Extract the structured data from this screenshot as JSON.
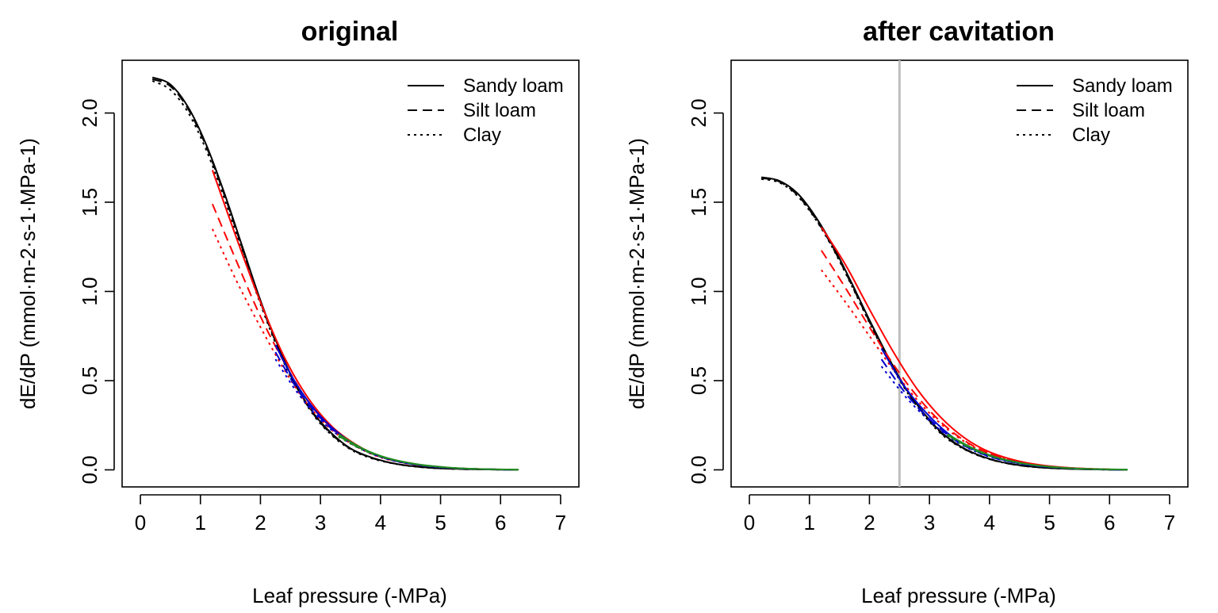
{
  "chart_data": [
    {
      "type": "line",
      "title": "original",
      "xlabel": "Leaf pressure (-MPa)",
      "ylabel": "dE/dP  (mmol·m-2·s-1·MPa-1)",
      "xlim": [
        0,
        7
      ],
      "ylim": [
        0,
        2.2
      ],
      "x_ticks": [
        "0",
        "1",
        "2",
        "3",
        "4",
        "5",
        "6",
        "7"
      ],
      "y_ticks": [
        "0.0",
        "0.5",
        "1.0",
        "1.5",
        "2.0"
      ],
      "grid": false,
      "legend_position": "top-right",
      "legend": [
        {
          "label": "Sandy loam",
          "dash": "solid"
        },
        {
          "label": "Silt loam",
          "dash": "dashed"
        },
        {
          "label": "Clay",
          "dash": "dotted"
        }
      ],
      "reference_line_x": null,
      "series": [
        {
          "soil": "Sandy loam",
          "color": "#000000",
          "dash": "solid",
          "x": [
            0.2,
            0.5,
            0.8,
            1.1,
            1.4,
            1.7,
            2.0,
            2.3,
            2.6,
            2.9,
            3.2,
            3.5,
            3.8,
            4.1,
            4.4,
            4.7,
            5.0,
            5.4,
            5.8,
            6.3
          ],
          "y": [
            2.2,
            2.16,
            2.03,
            1.82,
            1.55,
            1.25,
            0.95,
            0.69,
            0.47,
            0.31,
            0.2,
            0.12,
            0.075,
            0.045,
            0.026,
            0.015,
            0.008,
            0.004,
            0.002,
            0.0
          ]
        },
        {
          "soil": "Silt loam",
          "color": "#000000",
          "dash": "dashed",
          "x": [
            0.2,
            0.5,
            0.8,
            1.1,
            1.4,
            1.7,
            2.0,
            2.3,
            2.6,
            2.9,
            3.2,
            3.5,
            3.8,
            4.1,
            4.4,
            4.7,
            5.0,
            5.4,
            5.8,
            6.3
          ],
          "y": [
            2.19,
            2.15,
            2.02,
            1.81,
            1.54,
            1.24,
            0.94,
            0.68,
            0.465,
            0.305,
            0.195,
            0.118,
            0.073,
            0.044,
            0.026,
            0.015,
            0.008,
            0.004,
            0.002,
            0.0
          ]
        },
        {
          "soil": "Clay",
          "color": "#000000",
          "dash": "dotted",
          "x": [
            0.2,
            0.5,
            0.8,
            1.1,
            1.4,
            1.7,
            2.0,
            2.3,
            2.6,
            2.9,
            3.2,
            3.5,
            3.8,
            4.1,
            4.4,
            4.7,
            5.0,
            5.4,
            5.8,
            6.3
          ],
          "y": [
            2.18,
            2.13,
            2.0,
            1.79,
            1.52,
            1.22,
            0.93,
            0.67,
            0.46,
            0.3,
            0.19,
            0.115,
            0.07,
            0.043,
            0.025,
            0.014,
            0.008,
            0.004,
            0.002,
            0.0
          ]
        },
        {
          "soil": "Sandy loam",
          "color": "#ff0000",
          "dash": "solid",
          "x": [
            1.2,
            1.6,
            2.0,
            2.4,
            2.8,
            3.2,
            3.6,
            4.0,
            4.5,
            5.0,
            5.5,
            6.0
          ],
          "y": [
            1.68,
            1.3,
            0.94,
            0.63,
            0.4,
            0.24,
            0.14,
            0.075,
            0.035,
            0.015,
            0.006,
            0.002
          ]
        },
        {
          "soil": "Silt loam",
          "color": "#ff0000",
          "dash": "dashed",
          "x": [
            1.2,
            1.6,
            2.0,
            2.4,
            2.8,
            3.2,
            3.6,
            4.0,
            4.5,
            5.0,
            5.5,
            6.0
          ],
          "y": [
            1.49,
            1.17,
            0.86,
            0.6,
            0.38,
            0.23,
            0.135,
            0.072,
            0.033,
            0.014,
            0.006,
            0.002
          ]
        },
        {
          "soil": "Clay",
          "color": "#ff0000",
          "dash": "dotted",
          "x": [
            1.2,
            1.6,
            2.0,
            2.4,
            2.8,
            3.2,
            3.6,
            4.0,
            4.5,
            5.0,
            5.5,
            6.0
          ],
          "y": [
            1.35,
            1.06,
            0.8,
            0.56,
            0.36,
            0.22,
            0.13,
            0.07,
            0.032,
            0.014,
            0.006,
            0.002
          ]
        },
        {
          "soil": "Sandy loam",
          "color": "#0000cd",
          "dash": "solid",
          "x": [
            2.25,
            2.6,
            3.0,
            3.4,
            3.8,
            4.2,
            4.7,
            5.2,
            5.7,
            6.2
          ],
          "y": [
            0.7,
            0.48,
            0.3,
            0.18,
            0.1,
            0.055,
            0.024,
            0.01,
            0.004,
            0.001
          ]
        },
        {
          "soil": "Silt loam",
          "color": "#0000cd",
          "dash": "dashed",
          "x": [
            2.25,
            2.6,
            3.0,
            3.4,
            3.8,
            4.2,
            4.7,
            5.2,
            5.7,
            6.2
          ],
          "y": [
            0.66,
            0.46,
            0.29,
            0.175,
            0.1,
            0.054,
            0.024,
            0.01,
            0.004,
            0.001
          ]
        },
        {
          "soil": "Clay",
          "color": "#0000cd",
          "dash": "dotted",
          "x": [
            2.25,
            2.6,
            3.0,
            3.4,
            3.8,
            4.2,
            4.7,
            5.2,
            5.7,
            6.2
          ],
          "y": [
            0.62,
            0.44,
            0.28,
            0.17,
            0.098,
            0.053,
            0.024,
            0.01,
            0.004,
            0.001
          ]
        },
        {
          "soil": "Sandy loam",
          "color": "#228b22",
          "dash": "solid",
          "x": [
            3.3,
            3.7,
            4.1,
            4.6,
            5.1,
            5.6,
            6.3
          ],
          "y": [
            0.2,
            0.12,
            0.068,
            0.032,
            0.014,
            0.005,
            0.001
          ]
        },
        {
          "soil": "Silt loam",
          "color": "#228b22",
          "dash": "dashed",
          "x": [
            3.3,
            3.7,
            4.1,
            4.6,
            5.1,
            5.6,
            6.3
          ],
          "y": [
            0.19,
            0.115,
            0.066,
            0.031,
            0.013,
            0.005,
            0.001
          ]
        },
        {
          "soil": "Clay",
          "color": "#228b22",
          "dash": "dotted",
          "x": [
            3.3,
            3.7,
            4.1,
            4.6,
            5.1,
            5.6,
            6.3
          ],
          "y": [
            0.185,
            0.112,
            0.064,
            0.03,
            0.013,
            0.005,
            0.001
          ]
        }
      ]
    },
    {
      "type": "line",
      "title": "after cavitation",
      "xlabel": "Leaf pressure (-MPa)",
      "ylabel": "dE/dP  (mmol·m-2·s-1·MPa-1)",
      "xlim": [
        0,
        7
      ],
      "ylim": [
        0,
        2.2
      ],
      "x_ticks": [
        "0",
        "1",
        "2",
        "3",
        "4",
        "5",
        "6",
        "7"
      ],
      "y_ticks": [
        "0.0",
        "0.5",
        "1.0",
        "1.5",
        "2.0"
      ],
      "grid": false,
      "legend_position": "top-right",
      "legend": [
        {
          "label": "Sandy loam",
          "dash": "solid"
        },
        {
          "label": "Silt loam",
          "dash": "dashed"
        },
        {
          "label": "Clay",
          "dash": "dotted"
        }
      ],
      "reference_line_x": 2.5,
      "series": [
        {
          "soil": "Sandy loam",
          "color": "#000000",
          "dash": "solid",
          "x": [
            0.2,
            0.5,
            0.8,
            1.1,
            1.4,
            1.7,
            2.0,
            2.3,
            2.6,
            2.9,
            3.2,
            3.5,
            3.8,
            4.1,
            4.4,
            4.7,
            5.0,
            5.4,
            5.8,
            6.3
          ],
          "y": [
            1.64,
            1.62,
            1.55,
            1.42,
            1.25,
            1.05,
            0.84,
            0.64,
            0.46,
            0.32,
            0.21,
            0.135,
            0.085,
            0.052,
            0.031,
            0.018,
            0.01,
            0.005,
            0.002,
            0.0
          ]
        },
        {
          "soil": "Silt loam",
          "color": "#000000",
          "dash": "dashed",
          "x": [
            0.2,
            0.5,
            0.8,
            1.1,
            1.4,
            1.7,
            2.0,
            2.3,
            2.6,
            2.9,
            3.2,
            3.5,
            3.8,
            4.1,
            4.4,
            4.7,
            5.0,
            5.4,
            5.8,
            6.3
          ],
          "y": [
            1.635,
            1.615,
            1.54,
            1.41,
            1.24,
            1.04,
            0.83,
            0.63,
            0.455,
            0.315,
            0.205,
            0.132,
            0.083,
            0.051,
            0.03,
            0.017,
            0.01,
            0.005,
            0.002,
            0.0
          ]
        },
        {
          "soil": "Clay",
          "color": "#000000",
          "dash": "dotted",
          "x": [
            0.2,
            0.5,
            0.8,
            1.1,
            1.4,
            1.7,
            2.0,
            2.3,
            2.6,
            2.9,
            3.2,
            3.5,
            3.8,
            4.1,
            4.4,
            4.7,
            5.0,
            5.4,
            5.8,
            6.3
          ],
          "y": [
            1.63,
            1.61,
            1.535,
            1.405,
            1.235,
            1.035,
            0.825,
            0.625,
            0.45,
            0.31,
            0.2,
            0.13,
            0.082,
            0.05,
            0.03,
            0.017,
            0.01,
            0.005,
            0.002,
            0.0
          ]
        },
        {
          "soil": "Sandy loam",
          "color": "#ff0000",
          "dash": "solid",
          "x": [
            1.2,
            1.6,
            2.0,
            2.4,
            2.8,
            3.2,
            3.6,
            4.0,
            4.5,
            5.0,
            5.5,
            6.0
          ],
          "y": [
            1.36,
            1.15,
            0.9,
            0.66,
            0.45,
            0.29,
            0.175,
            0.1,
            0.048,
            0.021,
            0.008,
            0.003
          ]
        },
        {
          "soil": "Silt loam",
          "color": "#ff0000",
          "dash": "dashed",
          "x": [
            1.2,
            1.6,
            2.0,
            2.4,
            2.8,
            3.2,
            3.6,
            4.0,
            4.5,
            5.0,
            5.5,
            6.0
          ],
          "y": [
            1.23,
            1.02,
            0.8,
            0.59,
            0.41,
            0.265,
            0.16,
            0.092,
            0.044,
            0.019,
            0.008,
            0.003
          ]
        },
        {
          "soil": "Clay",
          "color": "#ff0000",
          "dash": "dotted",
          "x": [
            1.2,
            1.6,
            2.0,
            2.4,
            2.8,
            3.2,
            3.6,
            4.0,
            4.5,
            5.0,
            5.5,
            6.0
          ],
          "y": [
            1.12,
            0.94,
            0.75,
            0.56,
            0.39,
            0.255,
            0.155,
            0.09,
            0.043,
            0.019,
            0.008,
            0.003
          ]
        },
        {
          "soil": "Sandy loam",
          "color": "#0000cd",
          "dash": "solid",
          "x": [
            2.2,
            2.6,
            3.0,
            3.4,
            3.8,
            4.2,
            4.7,
            5.2,
            5.7,
            6.2
          ],
          "y": [
            0.68,
            0.46,
            0.3,
            0.18,
            0.105,
            0.058,
            0.026,
            0.011,
            0.004,
            0.001
          ]
        },
        {
          "soil": "Silt loam",
          "color": "#0000cd",
          "dash": "dashed",
          "x": [
            2.2,
            2.6,
            3.0,
            3.4,
            3.8,
            4.2,
            4.7,
            5.2,
            5.7,
            6.2
          ],
          "y": [
            0.62,
            0.43,
            0.285,
            0.172,
            0.1,
            0.056,
            0.025,
            0.011,
            0.004,
            0.001
          ]
        },
        {
          "soil": "Clay",
          "color": "#0000cd",
          "dash": "dotted",
          "x": [
            2.2,
            2.6,
            3.0,
            3.4,
            3.8,
            4.2,
            4.7,
            5.2,
            5.7,
            6.2
          ],
          "y": [
            0.58,
            0.41,
            0.275,
            0.168,
            0.098,
            0.055,
            0.025,
            0.011,
            0.004,
            0.001
          ]
        },
        {
          "soil": "Sandy loam",
          "color": "#228b22",
          "dash": "solid",
          "x": [
            3.3,
            3.7,
            4.1,
            4.6,
            5.1,
            5.6,
            6.3
          ],
          "y": [
            0.2,
            0.125,
            0.072,
            0.034,
            0.015,
            0.006,
            0.001
          ]
        },
        {
          "soil": "Silt loam",
          "color": "#228b22",
          "dash": "dashed",
          "x": [
            3.3,
            3.7,
            4.1,
            4.6,
            5.1,
            5.6,
            6.3
          ],
          "y": [
            0.195,
            0.12,
            0.07,
            0.033,
            0.014,
            0.005,
            0.001
          ]
        },
        {
          "soil": "Clay",
          "color": "#228b22",
          "dash": "dotted",
          "x": [
            3.3,
            3.7,
            4.1,
            4.6,
            5.1,
            5.6,
            6.3
          ],
          "y": [
            0.19,
            0.118,
            0.068,
            0.032,
            0.014,
            0.005,
            0.001
          ]
        }
      ]
    }
  ]
}
